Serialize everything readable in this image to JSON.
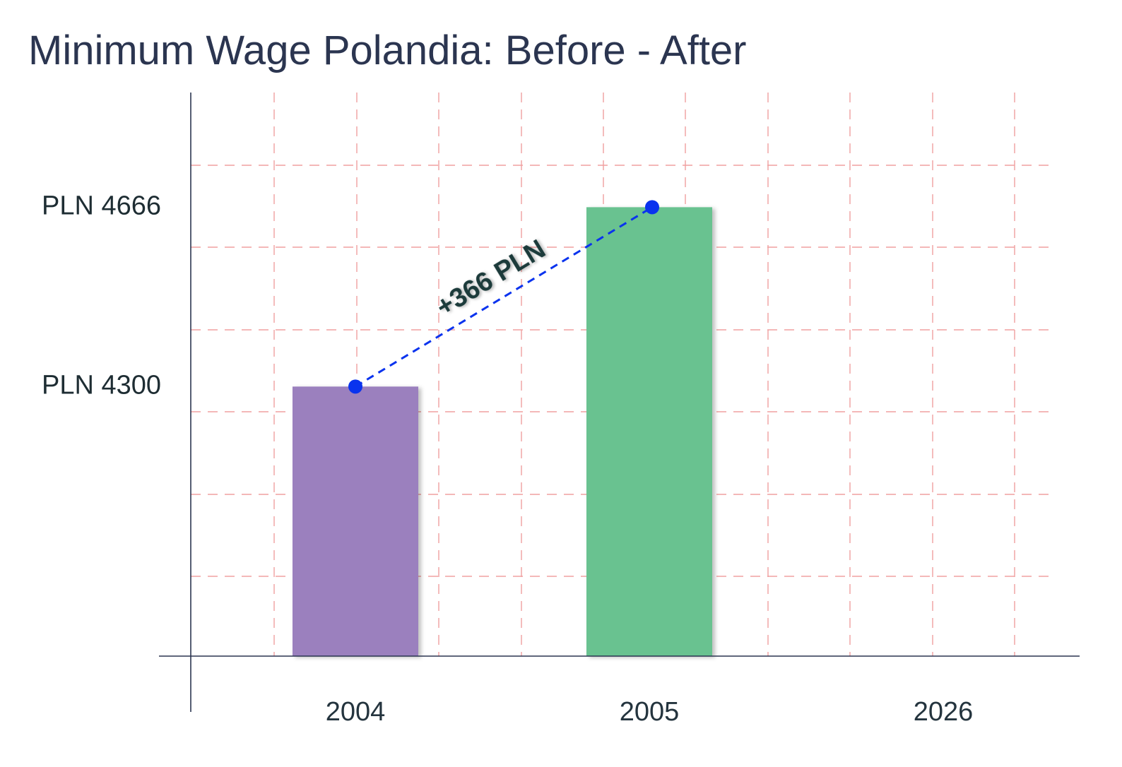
{
  "chart_data": {
    "type": "bar",
    "title": "Minimum Wage Polandia: Before - After",
    "categories": [
      "2004",
      "2005",
      "2026"
    ],
    "values": [
      4300,
      4666,
      null
    ],
    "bar_colors": [
      "#9b80be",
      "#69c290"
    ],
    "ytick_labels": [
      {
        "value": 4300,
        "label": "PLN 4300"
      },
      {
        "value": 4666,
        "label": "PLN 4666"
      }
    ],
    "ylim": [
      3750,
      4900
    ],
    "ylabel": "",
    "xlabel": "",
    "grid": true,
    "grid_color": "#f0a0a0",
    "connector": {
      "from_category": "2004",
      "to_category": "2005",
      "label": "+366 PLN",
      "color": "#0a33ee",
      "style": "dashed"
    }
  }
}
